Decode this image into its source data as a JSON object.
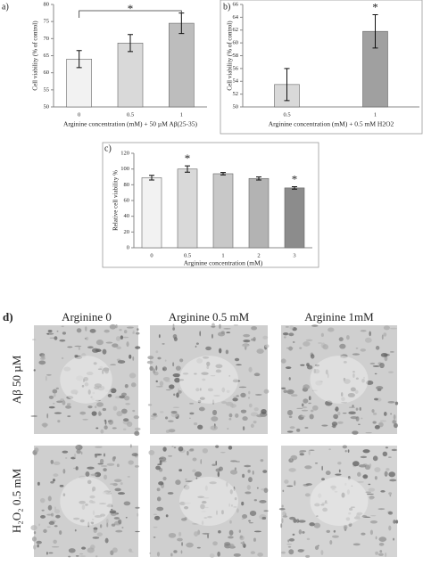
{
  "chart_data": [
    {
      "type": "bar",
      "panel_label": "a)",
      "y_label": "Cell viability (% of control)",
      "x_label": "Arginine concentration (mM) + 50 µM Aβ(25-35)",
      "categories": [
        "0",
        "0.5",
        "1"
      ],
      "values": [
        64,
        68.7,
        74.5
      ],
      "errors": [
        2.5,
        2.5,
        3
      ],
      "colors": [
        "#f2f2f2",
        "#d9d9d9",
        "#bdbdbd"
      ],
      "ylim": [
        50,
        80
      ],
      "yticks": [
        50,
        55,
        60,
        65,
        70,
        75,
        80
      ],
      "significance_bracket": {
        "label": "*",
        "categories": [
          "0",
          "1"
        ]
      }
    },
    {
      "type": "bar",
      "panel_label": "b)",
      "y_label": "Cell viability (% of control)",
      "x_label": "Arginine concentration (mM) + 0.5 mM H2O2",
      "categories": [
        "0.5",
        "1"
      ],
      "values": [
        53.5,
        61.8
      ],
      "errors": [
        2.5,
        2.6
      ],
      "colors": [
        "#d9d9d9",
        "#a0a0a0"
      ],
      "ylim": [
        50,
        66
      ],
      "yticks": [
        50,
        52,
        54,
        56,
        58,
        60,
        62,
        64,
        66
      ],
      "significance_labels": [
        null,
        "*"
      ],
      "border": true
    },
    {
      "type": "bar",
      "panel_label": "c)",
      "y_label": "Relative cell viability %",
      "x_label": "Arginine concentration (mM)",
      "categories": [
        "0",
        "0.5",
        "1",
        "2",
        "3"
      ],
      "values": [
        89,
        100,
        94,
        88,
        76
      ],
      "errors": [
        3,
        4,
        1.5,
        2,
        1.5
      ],
      "colors": [
        "#f2f2f2",
        "#d9d9d9",
        "#c8c8c8",
        "#b3b3b3",
        "#8c8c8c"
      ],
      "ylim": [
        0,
        120
      ],
      "yticks": [
        0,
        20,
        40,
        60,
        80,
        100,
        120
      ],
      "significance_labels": [
        null,
        "*",
        null,
        null,
        "*"
      ],
      "border": true
    }
  ],
  "image_panel": {
    "label": "d)",
    "column_labels": [
      "Arginine 0",
      "Arginine 0.5 mM",
      "Arginine 1mM"
    ],
    "row_labels": [
      "Aβ 50 µM",
      "H₂O₂ 0.5 mM"
    ]
  }
}
